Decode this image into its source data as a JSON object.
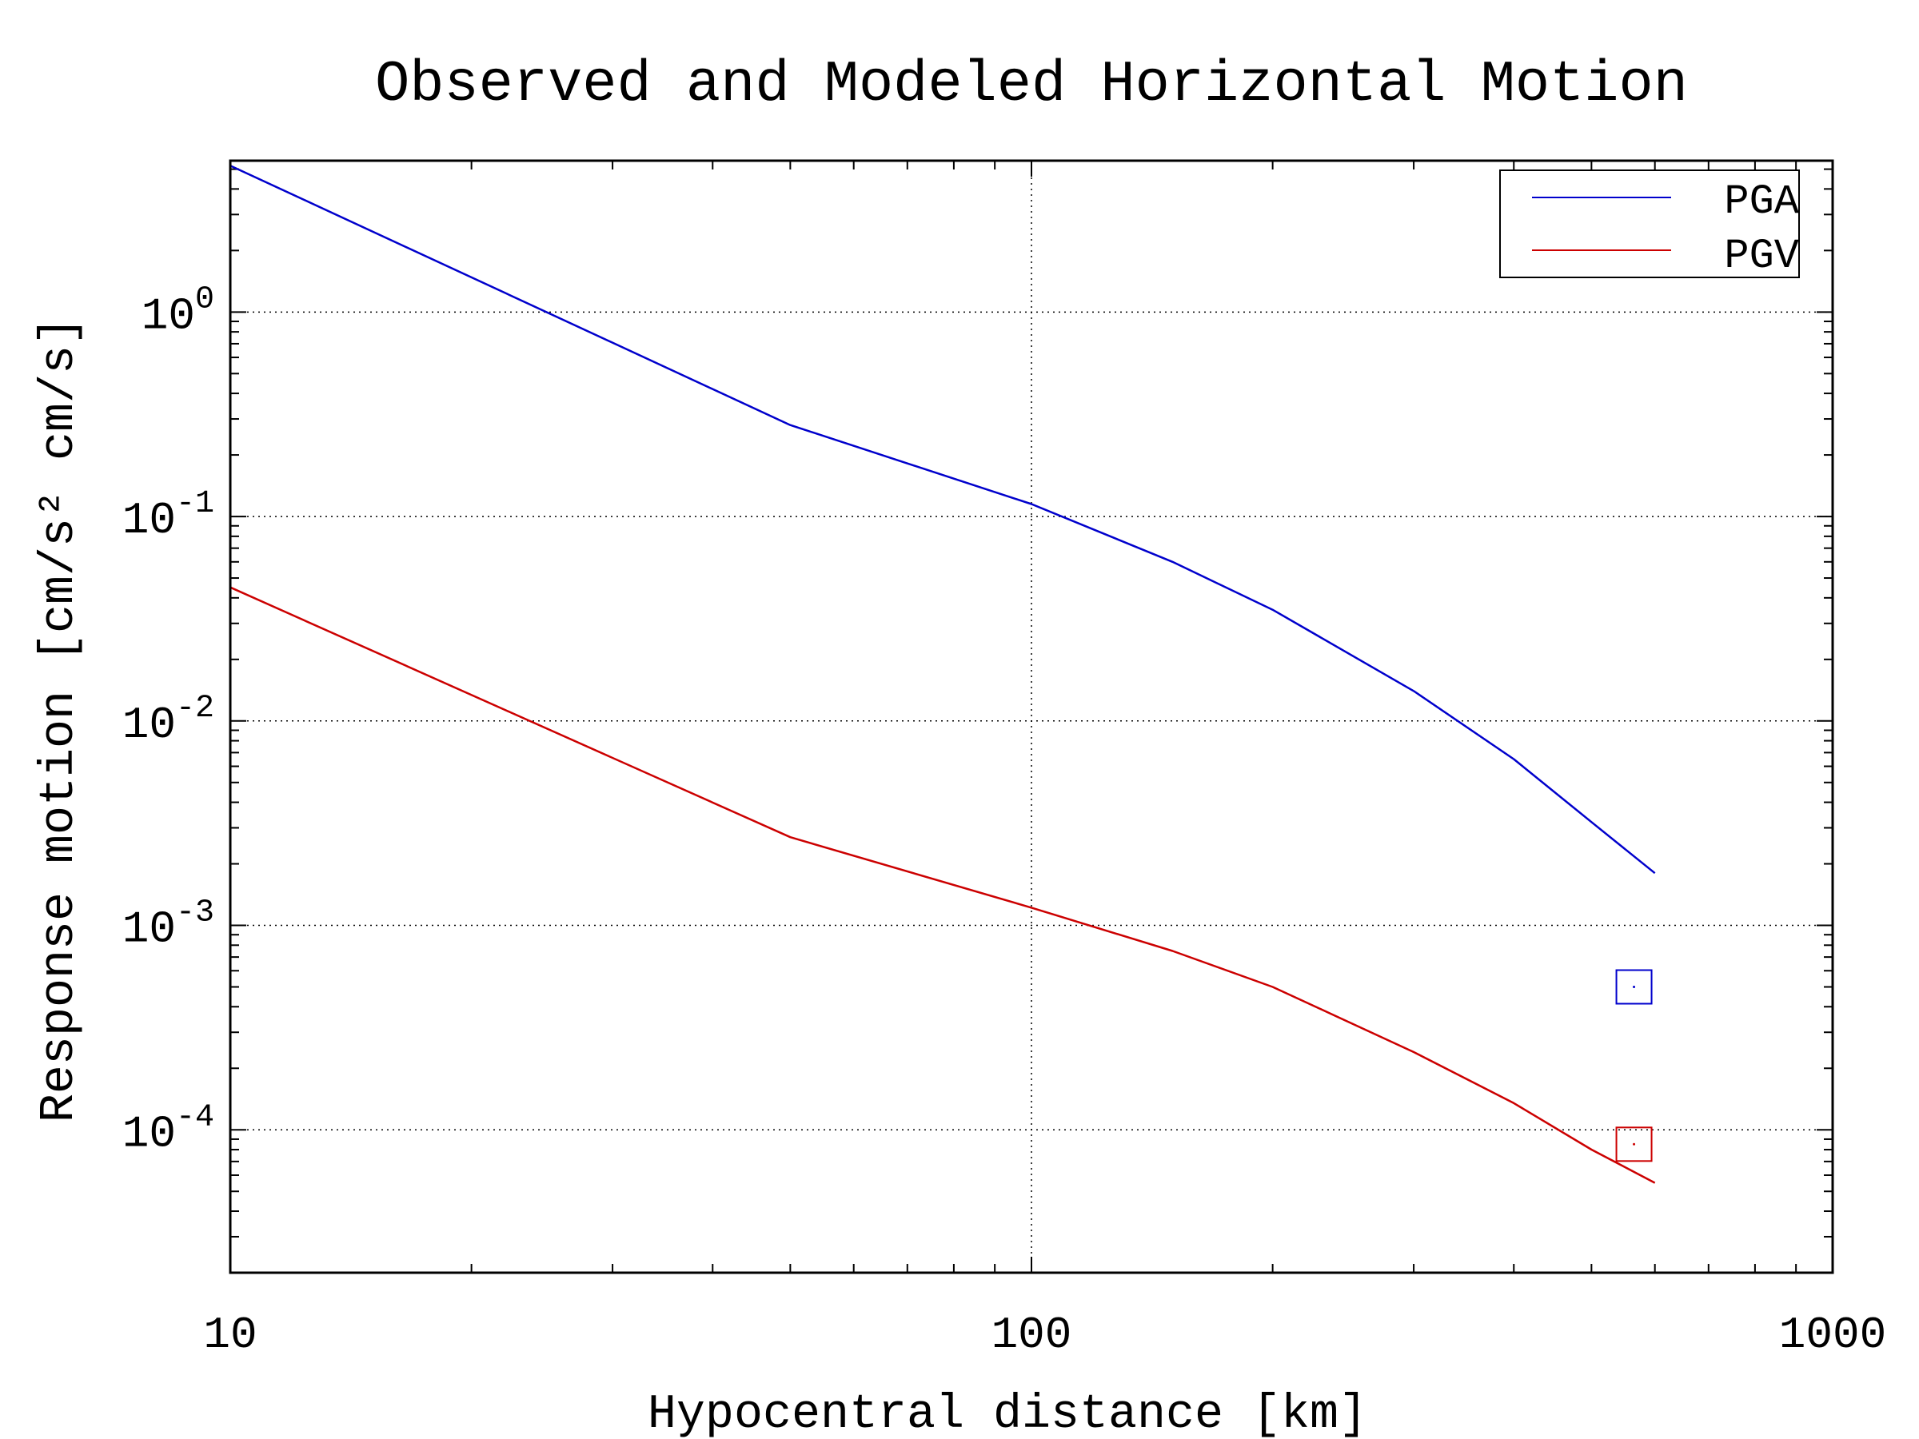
{
  "chart_data": {
    "type": "line",
    "title": "Observed and Modeled Horizontal Motion",
    "xlabel": "Hypocentral distance [km]",
    "ylabel": "Response motion [cm/s² cm/s]",
    "x_scale": "log",
    "y_scale": "log",
    "xlim": [
      10,
      1000
    ],
    "ylim": [
      2e-05,
      5.5
    ],
    "x_ticks": [
      {
        "value": 10,
        "label": "10"
      },
      {
        "value": 100,
        "label": "100"
      },
      {
        "value": 1000,
        "label": "1000"
      }
    ],
    "y_ticks": [
      {
        "value": 1,
        "base": "10",
        "exp": "0"
      },
      {
        "value": 0.1,
        "base": "10",
        "exp": "-1"
      },
      {
        "value": 0.01,
        "base": "10",
        "exp": "-2"
      },
      {
        "value": 0.001,
        "base": "10",
        "exp": "-3"
      },
      {
        "value": 0.0001,
        "base": "10",
        "exp": "-4"
      }
    ],
    "grid": true,
    "legend_position": "top-right",
    "series": [
      {
        "name": "PGA",
        "color": "#0000cc",
        "x": [
          10,
          50,
          100,
          150,
          200,
          300,
          400,
          500,
          600
        ],
        "y": [
          5.2,
          0.28,
          0.115,
          0.06,
          0.035,
          0.014,
          0.0065,
          0.0032,
          0.0018
        ]
      },
      {
        "name": "PGV",
        "color": "#cc0000",
        "x": [
          10,
          50,
          100,
          150,
          200,
          300,
          400,
          500,
          600
        ],
        "y": [
          0.045,
          0.0027,
          0.00122,
          0.00075,
          0.0005,
          0.00024,
          0.000135,
          8e-05,
          5.5e-05
        ]
      }
    ],
    "observed": [
      {
        "series": "PGA",
        "x": 565,
        "y": 0.0005,
        "color": "#0000cc"
      },
      {
        "series": "PGV",
        "x": 565,
        "y": 8.5e-05,
        "color": "#cc0000"
      }
    ]
  }
}
